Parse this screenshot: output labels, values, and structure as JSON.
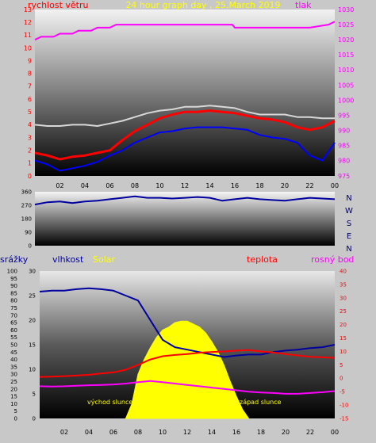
{
  "colors": {
    "page_bg": "#c8c8c8",
    "wind_label": "#ff0000",
    "pressure": "#ff00ff",
    "humidity": "#0000a0",
    "solar": "#ffff00",
    "temperature": "#ff0000",
    "dew_point": "#ff00ff",
    "direction": "#0000a0"
  },
  "chart_data": [
    {
      "type": "line",
      "title": "24 hour graph day , 25.March 2019",
      "left_label": "rychlost větru",
      "right_label": "tlak",
      "x_ticks": [
        "02",
        "04",
        "06",
        "08",
        "10",
        "12",
        "14",
        "16",
        "18",
        "20",
        "22",
        "00"
      ],
      "left_axis": {
        "range": [
          0,
          13
        ],
        "ticks": [
          "0",
          "1",
          "2",
          "3",
          "4",
          "5",
          "6",
          "7",
          "8",
          "9",
          "10",
          "11",
          "12",
          "13"
        ]
      },
      "right_axis": {
        "range": [
          975,
          1030
        ],
        "ticks": [
          "975",
          "980",
          "985",
          "990",
          "995",
          "1000",
          "1005",
          "1010",
          "1015",
          "1020",
          "1025",
          "1030"
        ]
      },
      "series": [
        {
          "name": "rychlost větru",
          "axis": "left",
          "color": "#ff0000",
          "x": [
            0,
            1,
            2,
            3,
            4,
            5,
            6,
            7,
            8,
            9,
            10,
            11,
            12,
            13,
            14,
            15,
            16,
            17,
            18,
            19,
            20,
            21,
            22,
            23,
            24
          ],
          "y": [
            1.8,
            1.6,
            1.3,
            1.5,
            1.6,
            1.8,
            2.0,
            2.8,
            3.5,
            4.0,
            4.5,
            4.8,
            5.0,
            5.0,
            5.1,
            5.0,
            4.9,
            4.7,
            4.5,
            4.4,
            4.2,
            3.8,
            3.6,
            3.8,
            4.3
          ]
        },
        {
          "axis": "left",
          "color": "#0000ff",
          "x": [
            0,
            1,
            2,
            3,
            4,
            5,
            6,
            7,
            8,
            9,
            10,
            11,
            12,
            13,
            14,
            15,
            16,
            17,
            18,
            19,
            20,
            21,
            22,
            23,
            24
          ],
          "y": [
            1.2,
            0.9,
            0.4,
            0.6,
            0.8,
            1.1,
            1.6,
            2.0,
            2.6,
            3.0,
            3.4,
            3.5,
            3.7,
            3.8,
            3.8,
            3.8,
            3.7,
            3.6,
            3.2,
            3.0,
            2.9,
            2.6,
            1.6,
            1.2,
            2.6
          ]
        },
        {
          "axis": "left",
          "color": "#d8d8d8",
          "x": [
            0,
            1,
            2,
            3,
            4,
            5,
            6,
            7,
            8,
            9,
            10,
            11,
            12,
            13,
            14,
            15,
            16,
            17,
            18,
            19,
            20,
            21,
            22,
            23,
            24
          ],
          "y": [
            4.0,
            3.9,
            3.9,
            4.0,
            4.0,
            3.9,
            4.1,
            4.3,
            4.6,
            4.9,
            5.1,
            5.2,
            5.4,
            5.4,
            5.5,
            5.4,
            5.3,
            5.0,
            4.8,
            4.8,
            4.8,
            4.6,
            4.6,
            4.5,
            4.5
          ]
        },
        {
          "name": "tlak",
          "axis": "right",
          "color": "#ff00ff",
          "x": [
            0,
            0.5,
            1.5,
            2,
            3,
            3.5,
            4.5,
            5,
            6,
            6.5,
            8,
            10,
            12,
            14,
            15.8,
            16,
            19,
            21,
            22,
            23.5,
            24
          ],
          "y": [
            1020,
            1021,
            1021,
            1022,
            1022,
            1023,
            1023,
            1024,
            1024,
            1025,
            1025,
            1025,
            1025,
            1025,
            1025,
            1024,
            1024,
            1024,
            1024,
            1025,
            1026
          ]
        }
      ]
    },
    {
      "type": "line",
      "right_labels": [
        "N",
        "W",
        "S",
        "E",
        "N"
      ],
      "left_axis": {
        "range": [
          0,
          360
        ],
        "ticks": [
          "0",
          "90",
          "180",
          "270",
          "360"
        ]
      },
      "series": [
        {
          "axis": "left",
          "color": "#0000a0",
          "x": [
            0,
            1,
            2,
            3,
            4,
            5,
            6,
            7,
            8,
            9,
            10,
            11,
            12,
            13,
            14,
            15,
            16,
            17,
            18,
            19,
            20,
            21,
            22,
            23,
            24
          ],
          "y": [
            275,
            290,
            295,
            285,
            295,
            300,
            310,
            320,
            330,
            320,
            320,
            315,
            320,
            325,
            320,
            300,
            310,
            320,
            310,
            305,
            300,
            310,
            320,
            315,
            310
          ]
        }
      ]
    },
    {
      "type": "line",
      "labels": {
        "srazky": "srážky",
        "vlhkost": "vlhkost",
        "solar": "Solar",
        "teplota": "teplota",
        "rosny_bod": "rosný bod",
        "sunrise": "východ slunce",
        "sunset": "západ slunce"
      },
      "x_ticks": [
        "02",
        "04",
        "06",
        "08",
        "10",
        "12",
        "14",
        "16",
        "18",
        "20",
        "22",
        "00"
      ],
      "axis_srazky": {
        "range": [
          0,
          100
        ],
        "ticks": [
          "0",
          "5",
          "10",
          "15",
          "20",
          "25",
          "30",
          "35",
          "40",
          "45",
          "50",
          "55",
          "60",
          "65",
          "70",
          "75",
          "80",
          "85",
          "90",
          "95",
          "100"
        ]
      },
      "axis_vlhkost": {
        "range": [
          0,
          30
        ],
        "ticks": [
          "0",
          "5",
          "10",
          "15",
          "20",
          "25",
          "30"
        ]
      },
      "axis_teplota": {
        "range": [
          -15,
          40
        ],
        "ticks": [
          "-15",
          "-10",
          "-5",
          "0",
          "5",
          "10",
          "15",
          "20",
          "25",
          "30",
          "35",
          "40"
        ]
      },
      "series": [
        {
          "name": "vlhkost",
          "axis": "vlhkost",
          "color": "#0000a0",
          "x": [
            0,
            1,
            2,
            3,
            4,
            5,
            6,
            7,
            8,
            9,
            10,
            11,
            12,
            13,
            14,
            15,
            16,
            17,
            18,
            19,
            20,
            21,
            22,
            23,
            24
          ],
          "y": [
            25.8,
            26.0,
            26.0,
            26.3,
            26.5,
            26.3,
            26.0,
            25.0,
            24.0,
            20.0,
            16.0,
            14.5,
            14.0,
            13.5,
            13.0,
            12.5,
            12.8,
            13.0,
            13.0,
            13.5,
            13.8,
            14.0,
            14.3,
            14.5,
            15.0
          ]
        },
        {
          "name": "teplota",
          "axis": "teplota",
          "color": "#ff0000",
          "x": [
            0,
            1,
            2,
            3,
            4,
            5,
            6,
            7,
            8,
            9,
            10,
            11,
            12,
            13,
            14,
            15,
            16,
            17,
            18,
            19,
            20,
            21,
            22,
            23,
            24
          ],
          "y": [
            0.5,
            0.6,
            0.8,
            1.0,
            1.3,
            1.8,
            2.2,
            3.2,
            5.0,
            7.0,
            8.2,
            8.7,
            9.0,
            9.5,
            9.8,
            10.0,
            10.3,
            10.5,
            10.0,
            9.6,
            9.0,
            8.5,
            8.0,
            7.8,
            7.6
          ]
        },
        {
          "name": "rosný bod",
          "axis": "teplota",
          "color": "#ff00ff",
          "x": [
            0,
            1,
            2,
            3,
            4,
            5,
            6,
            7,
            8,
            9,
            10,
            11,
            12,
            13,
            14,
            15,
            16,
            17,
            18,
            19,
            20,
            21,
            22,
            23,
            24
          ],
          "y": [
            -3.0,
            -3.1,
            -3.0,
            -2.8,
            -2.6,
            -2.5,
            -2.3,
            -2.0,
            -1.5,
            -1.0,
            -1.5,
            -2.0,
            -2.5,
            -3.0,
            -3.5,
            -4.0,
            -4.5,
            -5.0,
            -5.3,
            -5.5,
            -5.8,
            -5.8,
            -5.5,
            -5.2,
            -4.8
          ]
        },
        {
          "name": "Solar",
          "axis": "srazky",
          "type": "area",
          "color": "#ffff00",
          "x": [
            7,
            7.5,
            8,
            8.5,
            9,
            9.5,
            10,
            10.5,
            11,
            11.5,
            12,
            12.5,
            13,
            13.5,
            14,
            14.5,
            15,
            15.5,
            16,
            16.5,
            17
          ],
          "y": [
            0,
            10,
            30,
            40,
            48,
            55,
            60,
            62,
            65,
            66,
            66,
            64,
            62,
            58,
            52,
            45,
            36,
            25,
            15,
            6,
            0
          ]
        }
      ]
    }
  ]
}
